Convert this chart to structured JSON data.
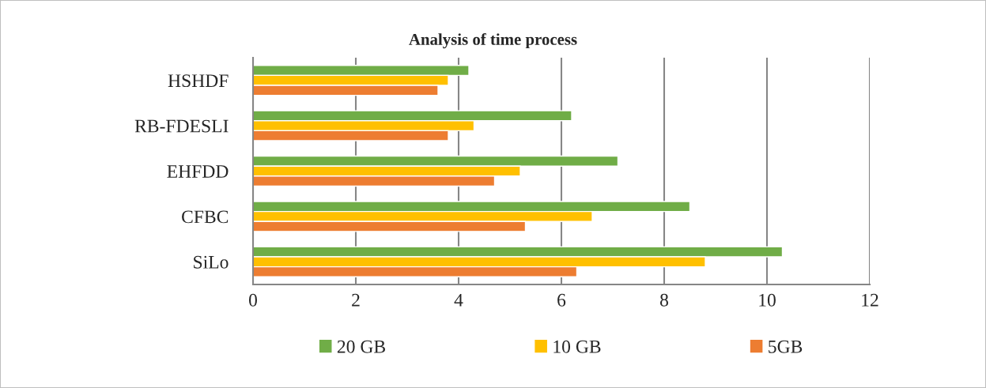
{
  "chart_data": {
    "type": "bar",
    "orientation": "horizontal",
    "title": "Analysis of time process",
    "categories": [
      "HSHDF",
      "RB-FDESLI",
      "EHFDD",
      "CFBC",
      "SiLo"
    ],
    "series": [
      {
        "name": "20 GB",
        "color": "#70ad47",
        "values": [
          4.2,
          6.2,
          7.1,
          8.5,
          10.3
        ]
      },
      {
        "name": "10 GB",
        "color": "#ffc000",
        "values": [
          3.8,
          4.3,
          5.2,
          6.6,
          8.8
        ]
      },
      {
        "name": "5GB",
        "color": "#ed7d31",
        "values": [
          3.6,
          3.8,
          4.7,
          5.3,
          6.3
        ]
      }
    ],
    "xlim": [
      0,
      12
    ],
    "xticks": [
      0,
      2,
      4,
      6,
      8,
      10,
      12
    ],
    "grid": "x",
    "legend": "bottom"
  }
}
